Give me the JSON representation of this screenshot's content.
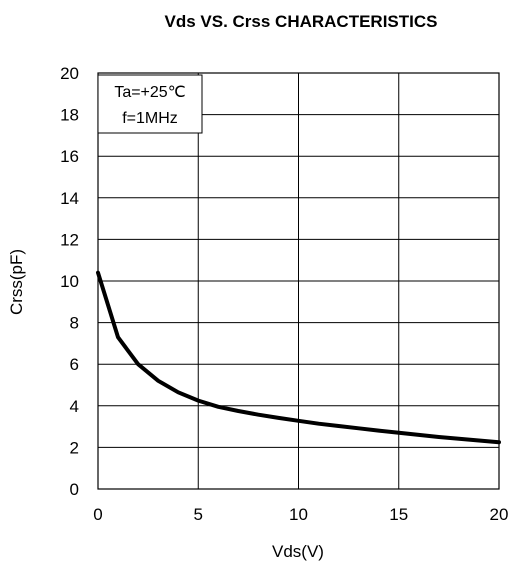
{
  "chart_data": {
    "type": "line",
    "title": "Vds  VS. Crss CHARACTERISTICS",
    "xlabel": "Vds(V)",
    "ylabel": "Crss(pF)",
    "xlim": [
      0,
      20
    ],
    "ylim": [
      0,
      20
    ],
    "xticks": [
      0,
      5,
      10,
      15,
      20
    ],
    "yticks": [
      0,
      2,
      4,
      6,
      8,
      10,
      12,
      14,
      16,
      18,
      20
    ],
    "grid": true,
    "annotations": [
      "Ta=+25℃",
      "f=1MHz"
    ],
    "series": [
      {
        "x": [
          0,
          1,
          2,
          3,
          4,
          5,
          6,
          7,
          8,
          9,
          10,
          11,
          12,
          13,
          14,
          15,
          16,
          17,
          18,
          19,
          20
        ],
        "values": [
          10.4,
          7.3,
          6.0,
          5.2,
          4.65,
          4.25,
          3.95,
          3.75,
          3.57,
          3.42,
          3.28,
          3.14,
          3.03,
          2.92,
          2.81,
          2.7,
          2.6,
          2.5,
          2.42,
          2.33,
          2.25
        ]
      }
    ]
  },
  "colors": {
    "line": "#000000",
    "grid": "#000000",
    "background": "#ffffff"
  }
}
